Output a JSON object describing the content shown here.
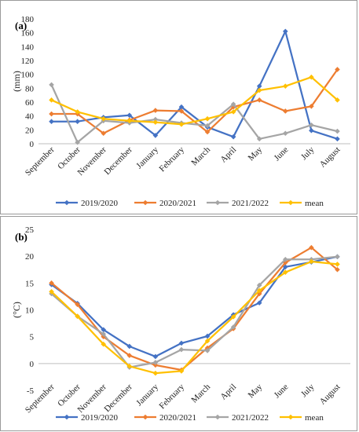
{
  "months": [
    "September",
    "October",
    "November",
    "December",
    "January",
    "February",
    "March",
    "April",
    "May",
    "June",
    "July",
    "August"
  ],
  "colors": {
    "2019/2020": "#4472C4",
    "2020/2021": "#ED7D31",
    "2021/2022": "#A5A5A5",
    "mean": "#FFC000"
  },
  "chart_data": [
    {
      "type": "line",
      "panel_label": "(a)",
      "ylabel": "(mm)",
      "ylim": [
        0,
        180
      ],
      "yticks": [
        0,
        20,
        40,
        60,
        80,
        100,
        120,
        140,
        160,
        180
      ],
      "grid": false,
      "legend": "bottom",
      "categories": [
        "September",
        "October",
        "November",
        "December",
        "January",
        "February",
        "March",
        "April",
        "May",
        "June",
        "July",
        "August"
      ],
      "series": [
        {
          "name": "2019/2020",
          "color": "#4472C4",
          "values": [
            32,
            32,
            38,
            41,
            12,
            53,
            24,
            10,
            83,
            162,
            19,
            7
          ]
        },
        {
          "name": "2020/2021",
          "color": "#ED7D31",
          "values": [
            43,
            43,
            15,
            34,
            48,
            47,
            17,
            53,
            63,
            47,
            54,
            107
          ]
        },
        {
          "name": "2021/2022",
          "color": "#A5A5A5",
          "values": [
            85,
            2,
            33,
            30,
            35,
            30,
            26,
            57,
            7,
            15,
            27,
            18
          ]
        },
        {
          "name": "mean",
          "color": "#FFC000",
          "values": [
            63,
            46,
            36,
            33,
            31,
            28,
            36,
            46,
            77,
            83,
            96,
            63
          ]
        }
      ]
    },
    {
      "type": "line",
      "panel_label": "(b)",
      "ylabel": "(°C)",
      "ylim": [
        -5,
        25
      ],
      "yticks": [
        -5,
        0,
        5,
        10,
        15,
        20,
        25
      ],
      "grid": false,
      "legend": "bottom",
      "categories": [
        "September",
        "October",
        "November",
        "December",
        "January",
        "February",
        "March",
        "April",
        "May",
        "June",
        "July",
        "August"
      ],
      "series": [
        {
          "name": "2019/2020",
          "color": "#4472C4",
          "values": [
            14.7,
            11.2,
            6.3,
            3.2,
            1.3,
            3.8,
            5.1,
            9.1,
            11.3,
            18.0,
            18.9,
            19.9
          ]
        },
        {
          "name": "2020/2021",
          "color": "#ED7D31",
          "values": [
            15.0,
            11.0,
            5.0,
            1.5,
            -0.3,
            -1.2,
            2.9,
            6.5,
            13.0,
            18.8,
            21.6,
            17.5
          ]
        },
        {
          "name": "2021/2022",
          "color": "#A5A5A5",
          "values": [
            13.0,
            8.8,
            5.5,
            -0.7,
            0.2,
            2.6,
            2.4,
            6.8,
            14.6,
            19.4,
            19.4,
            19.9
          ]
        },
        {
          "name": "mean",
          "color": "#FFC000",
          "values": [
            13.4,
            8.8,
            3.6,
            -0.5,
            -1.8,
            -1.4,
            4.2,
            8.7,
            13.6,
            17.0,
            19.0,
            18.5
          ]
        }
      ]
    }
  ]
}
